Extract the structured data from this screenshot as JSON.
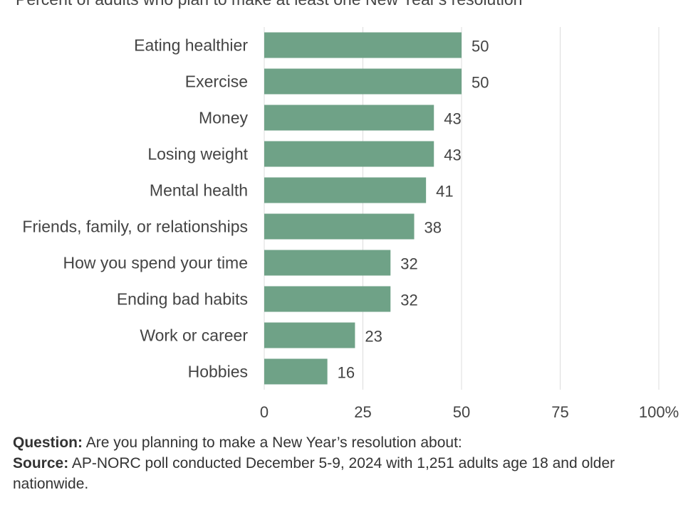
{
  "chart_data": {
    "type": "bar",
    "orientation": "horizontal",
    "subtitle": "Percent of adults who plan to make at least one New Year's resolution",
    "categories": [
      "Eating healthier",
      "Exercise",
      "Money",
      "Losing weight",
      "Mental health",
      "Friends, family, or relationships",
      "How you spend your time",
      "Ending bad habits",
      "Work or career",
      "Hobbies"
    ],
    "values": [
      50,
      50,
      43,
      43,
      41,
      38,
      32,
      32,
      23,
      16
    ],
    "xlim": [
      0,
      100
    ],
    "xticks": [
      0,
      25,
      50,
      75,
      100
    ],
    "xtick_labels": [
      "0",
      "25",
      "50",
      "75",
      "100%"
    ],
    "bar_color": "#6fa287",
    "grid": "vertical",
    "legend": "none"
  },
  "notes": {
    "question_label": "Question:",
    "question_text": "Are you planning to make a New Year’s resolution about:",
    "source_label": "Source:",
    "source_text": "AP-NORC poll conducted December 5-9, 2024 with 1,251 adults age 18 and older nationwide."
  }
}
